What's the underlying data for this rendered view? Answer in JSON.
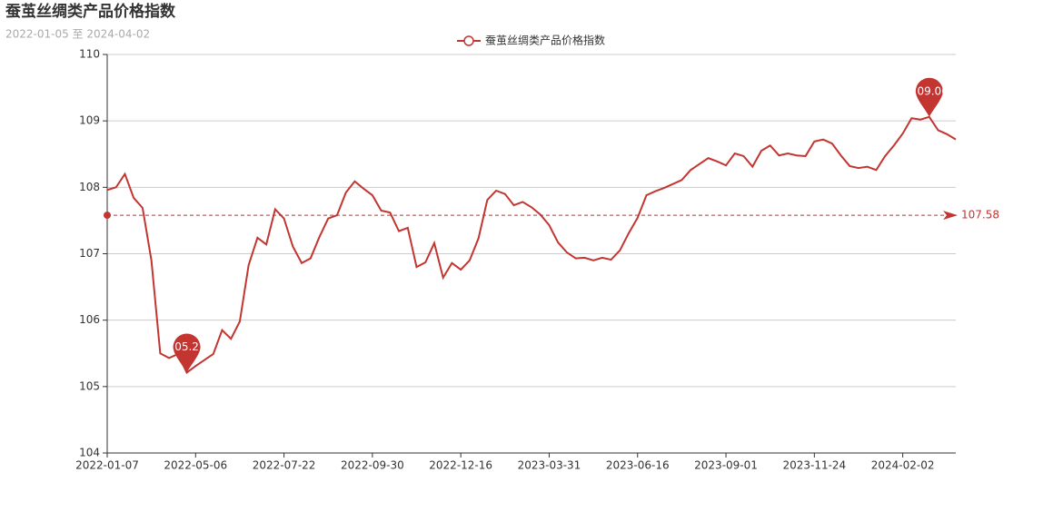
{
  "chart_data": {
    "type": "line",
    "title": "蚕茧丝绸类产品价格指数",
    "subtitle": "2022-01-05 至 2024-04-02",
    "categories": [
      "2022-01-07",
      null,
      null,
      null,
      null,
      null,
      null,
      null,
      null,
      null,
      "2022-05-06",
      null,
      null,
      null,
      null,
      null,
      null,
      null,
      null,
      null,
      "2022-07-22",
      null,
      null,
      null,
      null,
      null,
      null,
      null,
      null,
      null,
      "2022-09-30",
      null,
      null,
      null,
      null,
      null,
      null,
      null,
      null,
      null,
      "2022-12-16",
      null,
      null,
      null,
      null,
      null,
      null,
      null,
      null,
      null,
      "2023-03-31",
      null,
      null,
      null,
      null,
      null,
      null,
      null,
      null,
      null,
      "2023-06-16",
      null,
      null,
      null,
      null,
      null,
      null,
      null,
      null,
      null,
      "2023-09-01",
      null,
      null,
      null,
      null,
      null,
      null,
      null,
      null,
      null,
      "2023-11-24",
      null,
      null,
      null,
      null,
      null,
      null,
      null,
      null,
      null,
      "2024-02-02",
      null,
      null,
      null,
      null,
      null,
      null
    ],
    "series": [
      {
        "name": "蚕茧丝绸类产品价格指数",
        "color": "#c23531",
        "values": [
          107.96,
          108.0,
          108.2,
          107.84,
          107.69,
          106.9,
          105.5,
          105.43,
          105.49,
          105.21,
          105.31,
          105.4,
          105.49,
          105.85,
          105.72,
          105.98,
          106.83,
          107.24,
          107.14,
          107.67,
          107.53,
          107.11,
          106.86,
          106.93,
          107.25,
          107.53,
          107.58,
          107.92,
          108.09,
          107.98,
          107.88,
          107.65,
          107.62,
          107.34,
          107.39,
          106.8,
          106.87,
          107.16,
          106.64,
          106.86,
          106.76,
          106.9,
          107.23,
          107.81,
          107.95,
          107.9,
          107.73,
          107.78,
          107.7,
          107.59,
          107.43,
          107.17,
          107.02,
          106.93,
          106.94,
          106.9,
          106.94,
          106.91,
          107.05,
          107.31,
          107.54,
          107.88,
          107.94,
          107.99,
          108.05,
          108.11,
          108.26,
          108.35,
          108.44,
          108.39,
          108.33,
          108.51,
          108.47,
          108.31,
          108.55,
          108.63,
          108.48,
          108.51,
          108.48,
          108.47,
          108.69,
          108.72,
          108.66,
          108.48,
          108.32,
          108.29,
          108.31,
          108.26,
          108.47,
          108.63,
          108.81,
          109.04,
          109.02,
          109.06,
          108.86,
          108.8,
          108.72
        ]
      }
    ],
    "max_value": 109.06,
    "min_value": 105.21,
    "average": 107.58,
    "ylim": [
      104,
      110
    ],
    "yticks": [
      104,
      105,
      106,
      107,
      108,
      109,
      110
    ],
    "grid": true
  }
}
